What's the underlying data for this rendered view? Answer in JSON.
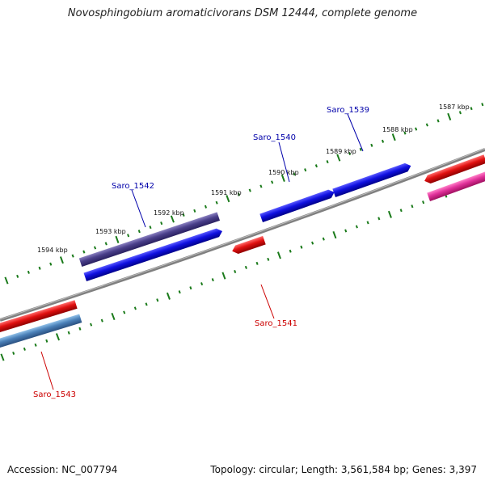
{
  "title": "Novosphingobium aromaticivorans DSM 12444, complete genome",
  "footer": {
    "accession": "Accession: NC_007794",
    "summary": "Topology: circular; Length: 3,561,584 bp; Genes: 3,397"
  },
  "scale_labels": [
    "1587 kbp",
    "1588 kbp",
    "1589 kbp",
    "1590 kbp",
    "1591 kbp",
    "1592 kbp",
    "1593 kbp",
    "1594 kbp"
  ],
  "genes": [
    {
      "name": "Saro_1539",
      "color": "#0000aa"
    },
    {
      "name": "Saro_1540",
      "color": "#0000aa"
    },
    {
      "name": "Saro_1541",
      "color": "#cc0000"
    },
    {
      "name": "Saro_1542",
      "color": "#0000aa"
    },
    {
      "name": "Saro_1543",
      "color": "#cc0000"
    }
  ],
  "colors": {
    "backbone": "#808080",
    "tick": "#1a7a1a",
    "gene_blue": "#1010e0",
    "gene_navy": "#4a3f8a",
    "gene_red": "#e01010",
    "gene_magenta": "#e0309a",
    "gene_steel": "#4a80b8"
  }
}
